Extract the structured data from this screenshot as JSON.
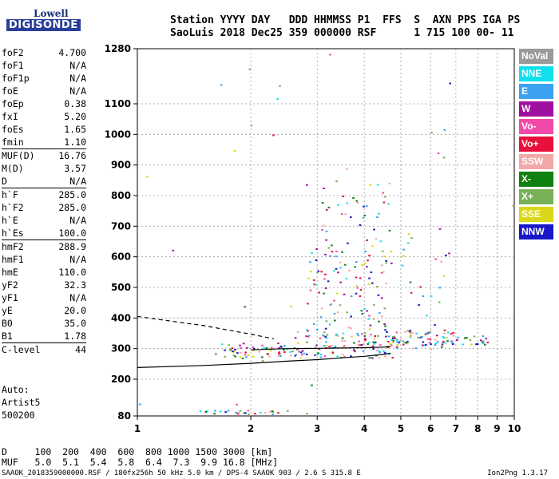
{
  "logo": {
    "line1": "Lowell",
    "line2": "DIGISONDE"
  },
  "header": {
    "line1": "Station YYYY DAY   DDD HHMMSS P1  FFS  S  AXN PPS IGA PS",
    "line2": "SaoLuis 2018 Dec25 359 000000 RSF      1 715 100 00- 11"
  },
  "params": [
    {
      "k": "foF2",
      "v": "4.700"
    },
    {
      "k": "foF1",
      "v": "N/A"
    },
    {
      "k": "foF1p",
      "v": "N/A"
    },
    {
      "k": "foE",
      "v": "N/A"
    },
    {
      "k": "foEp",
      "v": "0.38"
    },
    {
      "k": "fxI",
      "v": "5.20"
    },
    {
      "k": "foEs",
      "v": "1.65"
    },
    {
      "k": "fmin",
      "v": "1.10"
    },
    {
      "k": "MUF(D)",
      "v": "16.76",
      "sep": true
    },
    {
      "k": "M(D)",
      "v": "3.57"
    },
    {
      "k": "D",
      "v": "N/A"
    },
    {
      "k": "h`F",
      "v": "285.0",
      "sep": true
    },
    {
      "k": "h`F2",
      "v": "285.0"
    },
    {
      "k": "h`E",
      "v": "N/A"
    },
    {
      "k": "h`Es",
      "v": "100.0"
    },
    {
      "k": "hmF2",
      "v": "288.9",
      "sep": true
    },
    {
      "k": "hmF1",
      "v": "N/A"
    },
    {
      "k": "hmE",
      "v": "110.0"
    },
    {
      "k": "yF2",
      "v": "32.3"
    },
    {
      "k": "yF1",
      "v": "N/A"
    },
    {
      "k": "yE",
      "v": "20.0"
    },
    {
      "k": "B0",
      "v": "35.0"
    },
    {
      "k": "B1",
      "v": "1.78"
    },
    {
      "k": "C-level",
      "v": "44",
      "sep": true
    }
  ],
  "auto": {
    "line1": "Auto:",
    "line2": "Artist5",
    "line3": "500200"
  },
  "scale": {
    "d_line": "D     100  200  400  600  800 1000 1500 3000 [km]",
    "muf_line": "MUF   5.0  5.1  5.4  5.8  6.4  7.3  9.9 16.8 [MHz]"
  },
  "footer": {
    "left": "SAAOK_2018359000000.RSF / 180fx256h 50 kHz 5.0 km / DPS-4 SAAOK 903 / 2.6 S 315.8 E",
    "right": "Ion2Png 1.3.17"
  },
  "legend": [
    {
      "label": "NoVal",
      "color": "#9a9a9a"
    },
    {
      "label": "NNE",
      "color": "#10e0ee"
    },
    {
      "label": "E",
      "color": "#3aa2f0"
    },
    {
      "label": "W",
      "color": "#a010a0"
    },
    {
      "label": "Vo-",
      "color": "#f04aa8"
    },
    {
      "label": "Vo+",
      "color": "#e8103a"
    },
    {
      "label": "SSW",
      "color": "#f2a8a8"
    },
    {
      "label": "X-",
      "color": "#108010"
    },
    {
      "label": "X+",
      "color": "#78b058"
    },
    {
      "label": "SSE",
      "color": "#d8d818"
    },
    {
      "label": "NNW",
      "color": "#1818c8"
    }
  ],
  "chart_data": {
    "type": "scatter",
    "xlim": [
      1,
      10
    ],
    "ylim": [
      80,
      1280
    ],
    "x_ticks": [
      1,
      2,
      3,
      4,
      5,
      6,
      7,
      8,
      9,
      10
    ],
    "y_ticks": [
      80,
      200,
      300,
      400,
      500,
      600,
      700,
      800,
      900,
      1000,
      1100,
      1280
    ],
    "scale": "log-frequency",
    "grid": true,
    "legend_position": "right",
    "traces": [
      {
        "style": "solid",
        "points": [
          [
            1.0,
            238
          ],
          [
            1.5,
            245
          ],
          [
            2.0,
            252
          ],
          [
            2.5,
            259
          ],
          [
            3.0,
            264
          ],
          [
            3.5,
            270
          ],
          [
            4.0,
            275
          ],
          [
            4.5,
            281
          ],
          [
            4.7,
            285
          ]
        ]
      },
      {
        "style": "dashed",
        "points": [
          [
            1.0,
            405
          ],
          [
            1.5,
            375
          ],
          [
            2.0,
            347
          ],
          [
            2.3,
            332
          ]
        ]
      },
      {
        "style": "solid",
        "points": [
          [
            2.0,
            296
          ],
          [
            2.5,
            300
          ],
          [
            3.0,
            301
          ],
          [
            3.5,
            302
          ],
          [
            4.0,
            303
          ],
          [
            4.5,
            305
          ],
          [
            4.7,
            306
          ]
        ]
      }
    ],
    "echo_regions": [
      {
        "f": [
          1.6,
          2.6
        ],
        "h": [
          270,
          320
        ],
        "density": 60
      },
      {
        "f": [
          2.6,
          4.8
        ],
        "h": [
          270,
          360
        ],
        "density": 120
      },
      {
        "f": [
          2.8,
          4.7
        ],
        "h": [
          360,
          650
        ],
        "density": 110
      },
      {
        "f": [
          3.0,
          4.7
        ],
        "h": [
          650,
          850
        ],
        "density": 35
      },
      {
        "f": [
          4.7,
          7.0
        ],
        "h": [
          300,
          360
        ],
        "density": 70
      },
      {
        "f": [
          7.0,
          8.5
        ],
        "h": [
          315,
          345
        ],
        "density": 18
      },
      {
        "f": [
          5.0,
          6.6
        ],
        "h": [
          350,
          700
        ],
        "density": 25
      },
      {
        "f": [
          1.4,
          2.8
        ],
        "h": [
          88,
          100
        ],
        "density": 28
      },
      {
        "f": [
          1.0,
          10.0
        ],
        "h": [
          100,
          1280
        ],
        "density": 28
      }
    ]
  }
}
